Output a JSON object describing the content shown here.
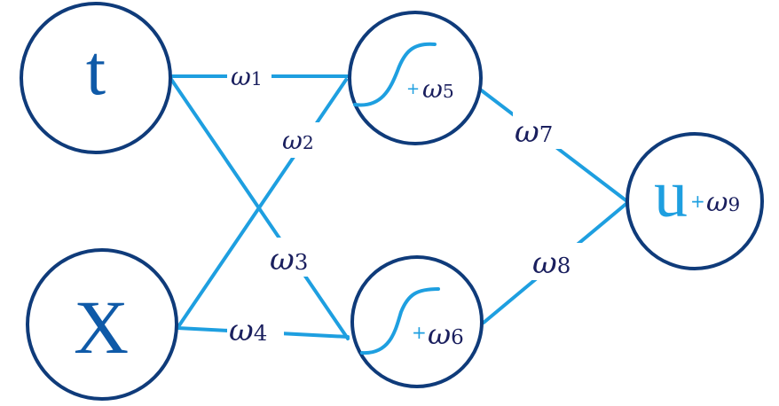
{
  "nodes": {
    "input_t": "t",
    "input_x": "X",
    "output_u": "u"
  },
  "weights": {
    "w1": "ω1",
    "w2": "ω2",
    "w3": "ω3",
    "w4": "ω4",
    "w5": "ω5",
    "w6": "ω6",
    "w7": "ω7",
    "w8": "ω8",
    "w9": "ω9"
  },
  "bias_sign": "+",
  "colors": {
    "node_outline": "#0f3b7a",
    "edges": "#1e9fe0",
    "weight_text": "#1a1f5e",
    "input_text": "#0f5aa8"
  }
}
